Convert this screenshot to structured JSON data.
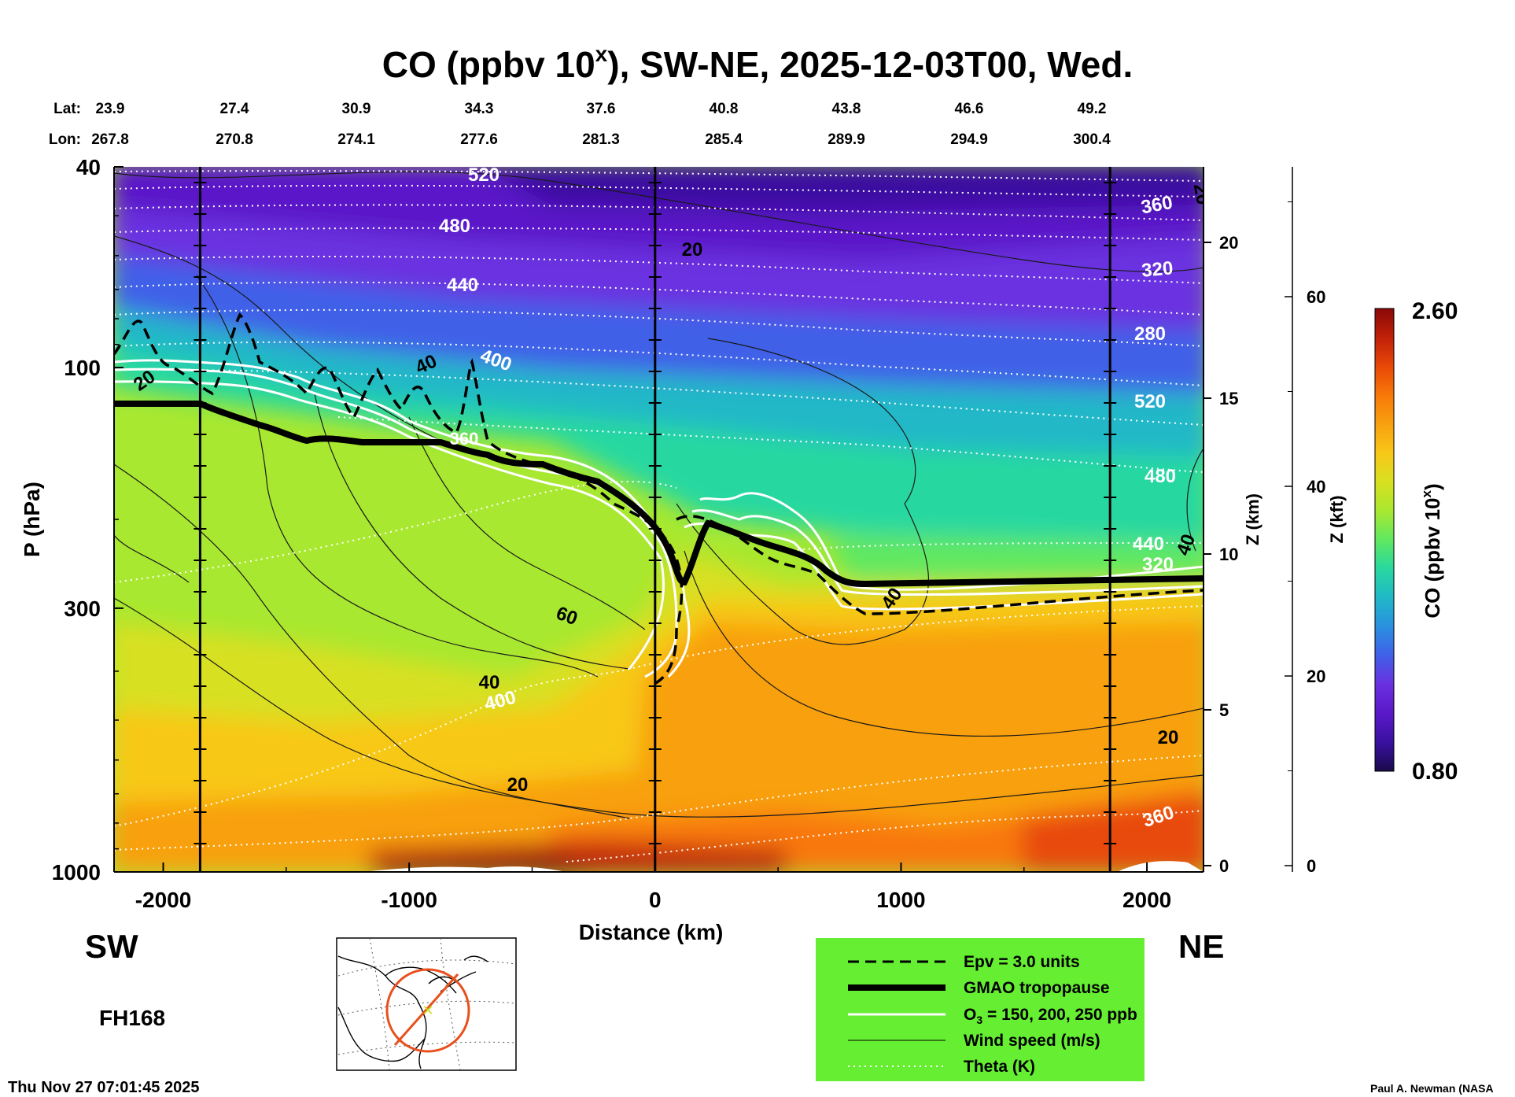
{
  "chart_data": {
    "type": "heatmap",
    "title": "CO (ppbv 10",
    "title_sup": "x",
    "title_rest": "), SW-NE, 2025-12-03T00, Wed.",
    "lat_label": "Lat:",
    "lon_label": "Lon:",
    "lats": [
      "23.9",
      "27.4",
      "30.9",
      "34.3",
      "37.6",
      "40.8",
      "43.8",
      "46.6",
      "49.2"
    ],
    "lons": [
      "267.8",
      "270.8",
      "274.1",
      "277.6",
      "281.3",
      "285.4",
      "289.9",
      "294.9",
      "300.4"
    ],
    "xlabel": "Distance (km)",
    "xlim": [
      -2200,
      2230
    ],
    "xticks": [
      -2000,
      -1000,
      0,
      1000,
      2000
    ],
    "xtick_labels": [
      "-2000",
      "-1000",
      "0",
      "1000",
      "2000"
    ],
    "ylabel": "P (hPa)",
    "ylim": [
      1000,
      40
    ],
    "yticks": [
      40,
      100,
      300,
      1000
    ],
    "ytick_labels": [
      "40",
      "100",
      "300",
      "1000"
    ],
    "z_km_label": "Z (km)",
    "z_km_ticks": [
      0,
      5,
      10,
      15,
      20
    ],
    "z_km_tick_labels": [
      "0",
      "5",
      "10",
      "15",
      "20"
    ],
    "z_kft_label": "Z (kft)",
    "z_kft_ticks": [
      0,
      20,
      40,
      60
    ],
    "z_kft_tick_labels": [
      "0",
      "20",
      "40",
      "60"
    ],
    "vertical_lines_km": [
      -1850,
      0,
      1850
    ],
    "colorbar": {
      "label": "CO (ppbv 10",
      "label_sup": "x",
      "label_end": ")",
      "max_label": "2.60",
      "min_label": "0.80",
      "range": [
        0.8,
        2.6
      ],
      "colors": [
        "#1a0a4a",
        "#3a10a0",
        "#5a18c8",
        "#6a30e0",
        "#4060e8",
        "#2a90e0",
        "#20b8c8",
        "#28d8a0",
        "#60e860",
        "#a8e830",
        "#d8e020",
        "#f8c818",
        "#f8a010",
        "#f87808",
        "#e84808",
        "#c02008",
        "#8a0808"
      ]
    },
    "theta_labels": [
      "520",
      "480",
      "440",
      "400",
      "360",
      "320",
      "280",
      "520",
      "480",
      "440",
      "400",
      "360",
      "320"
    ],
    "wind_labels": [
      "20",
      "20",
      "40",
      "60",
      "40",
      "20",
      "20",
      "40",
      "20",
      "40"
    ],
    "tropo_label": "360",
    "legend": [
      {
        "style": "epv",
        "label": "Epv = 3.0 units"
      },
      {
        "style": "tropopause",
        "label": "GMAO tropopause"
      },
      {
        "style": "ozone",
        "label_a": "O",
        "label_sub": "3",
        "label_b": " = 150, 200, 250 ppb"
      },
      {
        "style": "wind",
        "label": "Wind speed (m/s)"
      },
      {
        "style": "theta",
        "label": "Theta (K)"
      }
    ],
    "legend_position": "bottom-right",
    "left_dir": "SW",
    "right_dir": "NE",
    "forecast_hour": "FH168",
    "timestamp": "Thu Nov 27 07:01:45 2025",
    "credit": "Paul A. Newman (NASA"
  }
}
